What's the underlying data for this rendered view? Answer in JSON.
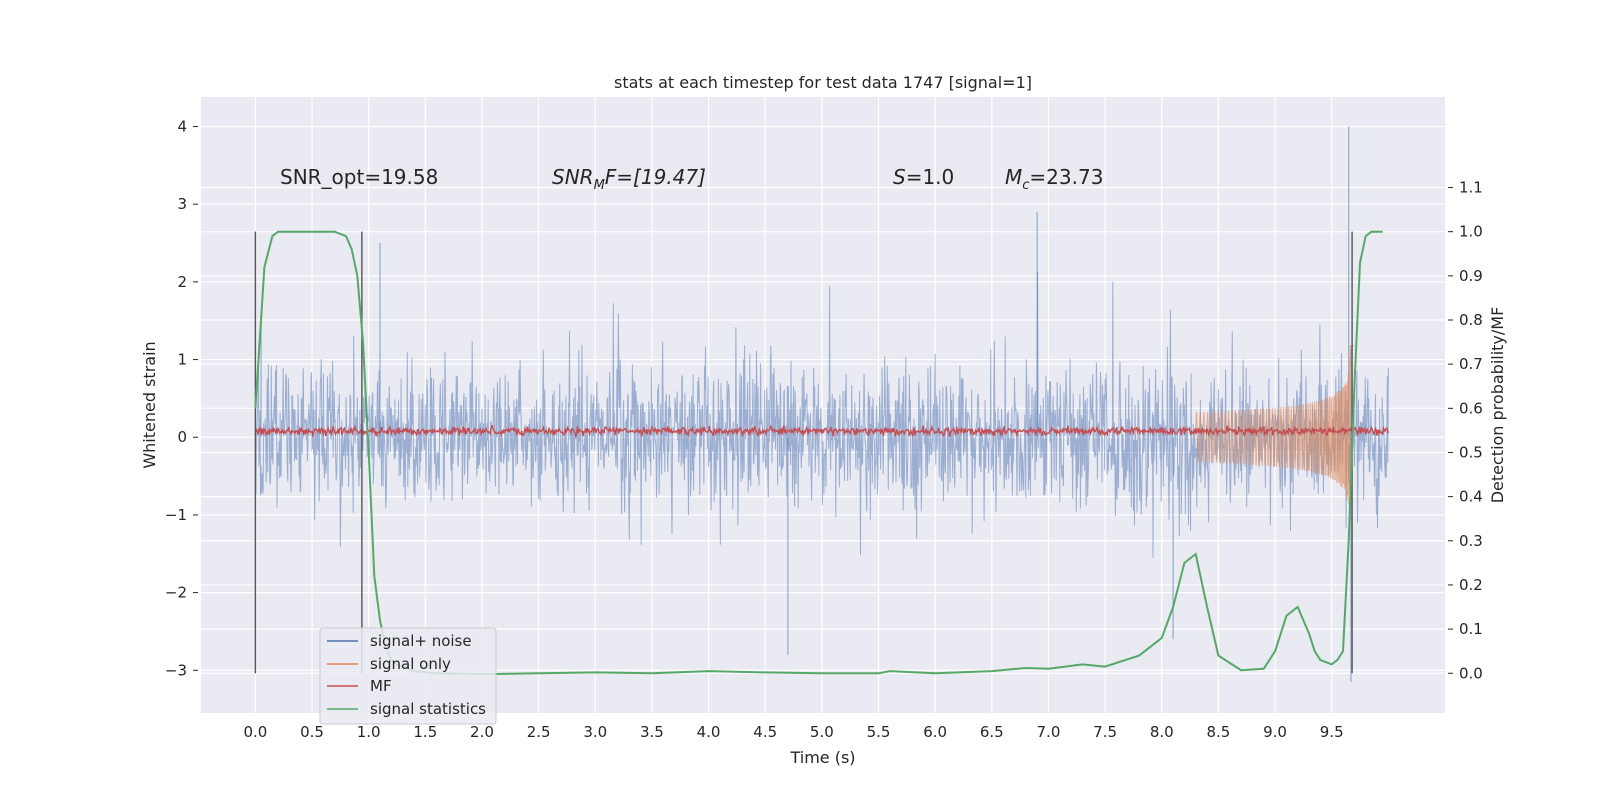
{
  "chart_data": {
    "type": "line",
    "title": "stats at each timestep for test data 1747 [signal=1]",
    "xlabel": "Time (s)",
    "ylabel": "Whitened strain",
    "y2label": "Detection probability/MF",
    "xlim": [
      -0.48,
      10.5
    ],
    "ylim": [
      -3.55,
      4.38
    ],
    "y2lim": [
      -0.09,
      1.305
    ],
    "xticks": [
      "0.0",
      "0.5",
      "1.0",
      "1.5",
      "2.0",
      "2.5",
      "3.0",
      "3.5",
      "4.0",
      "4.5",
      "5.0",
      "5.5",
      "6.0",
      "6.5",
      "7.0",
      "7.5",
      "8.0",
      "8.5",
      "9.0",
      "9.5"
    ],
    "yticks": [
      "4",
      "3",
      "2",
      "1",
      "0",
      "−1",
      "−2",
      "−3"
    ],
    "y2ticks": [
      "1.1",
      "1.0",
      "0.9",
      "0.8",
      "0.7",
      "0.6",
      "0.5",
      "0.4",
      "0.3",
      "0.2",
      "0.1",
      "0.0"
    ],
    "grid": true,
    "legend_position": "lower-left",
    "annotations": {
      "snr_opt": "SNR_opt=19.58",
      "snr_mf_base": "SNR",
      "snr_mf_sub": "M",
      "snr_mf_rest": "F=[19.47]",
      "s_base": "S",
      "s_rest": "=1.0",
      "mc_base": "M",
      "mc_sub": "c",
      "mc_rest": "=23.73"
    },
    "series": [
      {
        "name": "signal+ noise",
        "color": "#4c72b0",
        "envelope_upper_typical": 1.4,
        "envelope_lower_typical": -1.2,
        "peaks": [
          [
            0.05,
            1.6
          ],
          [
            1.1,
            2.5
          ],
          [
            4.7,
            -2.8
          ],
          [
            6.9,
            2.9
          ],
          [
            8.1,
            -2.6
          ],
          [
            9.65,
            4.0
          ],
          [
            9.67,
            -3.15
          ]
        ],
        "x_range": [
          0.0,
          10.0
        ]
      },
      {
        "name": "signal only",
        "color": "#dd8452",
        "x_range": [
          8.3,
          9.7
        ],
        "amplitude_end": 2.5,
        "merger_time": 9.67
      },
      {
        "name": "MF",
        "color": "#c44e52",
        "mean": 0.08,
        "amplitude": 0.08,
        "x_range": [
          0.0,
          10.0
        ]
      },
      {
        "name": "signal statistics",
        "color": "#55a868",
        "axis": "right",
        "x": [
          0.0,
          0.08,
          0.15,
          0.2,
          0.3,
          0.4,
          0.5,
          0.6,
          0.7,
          0.8,
          0.85,
          0.9,
          0.95,
          1.0,
          1.05,
          1.1,
          1.15,
          1.2,
          1.25,
          1.3,
          1.4,
          1.6,
          2.0,
          2.5,
          3.0,
          3.5,
          4.0,
          4.5,
          5.0,
          5.5,
          5.6,
          6.0,
          6.5,
          6.8,
          7.0,
          7.3,
          7.5,
          7.8,
          8.0,
          8.1,
          8.2,
          8.3,
          8.4,
          8.5,
          8.7,
          8.9,
          9.0,
          9.1,
          9.15,
          9.2,
          9.3,
          9.35,
          9.4,
          9.5,
          9.55,
          9.6,
          9.65,
          9.7,
          9.75,
          9.8,
          9.85,
          9.9,
          9.95
        ],
        "values": [
          0.6,
          0.92,
          0.99,
          1.0,
          1.0,
          1.0,
          1.0,
          1.0,
          1.0,
          0.99,
          0.96,
          0.9,
          0.75,
          0.5,
          0.22,
          0.12,
          0.06,
          0.03,
          0.02,
          0.015,
          0.005,
          0.0,
          -0.002,
          0.0,
          0.002,
          0.0,
          0.005,
          0.002,
          0.0,
          0.0,
          0.005,
          0.0,
          0.005,
          0.012,
          0.01,
          0.02,
          0.015,
          0.04,
          0.08,
          0.15,
          0.25,
          0.27,
          0.15,
          0.04,
          0.007,
          0.01,
          0.05,
          0.13,
          0.14,
          0.15,
          0.09,
          0.05,
          0.03,
          0.02,
          0.03,
          0.05,
          0.3,
          0.65,
          0.93,
          0.99,
          1.0,
          1.0,
          1.0
        ]
      }
    ],
    "vertical_markers": [
      0.0,
      0.94,
      9.68
    ]
  }
}
